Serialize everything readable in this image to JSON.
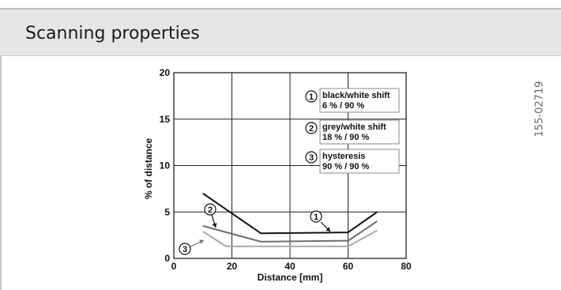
{
  "header": {
    "title": "Scanning properties"
  },
  "reference_code": "155-02719",
  "chart_data": {
    "type": "line",
    "xlabel": "Distance [mm]",
    "ylabel": "% of distance",
    "xlim": [
      0,
      80
    ],
    "ylim": [
      0,
      20
    ],
    "x_ticks": [
      0,
      20,
      40,
      60,
      80
    ],
    "y_ticks": [
      0,
      5,
      10,
      15,
      20
    ],
    "grid": true,
    "legend": [
      {
        "number": "1",
        "lines": [
          "black/white shift",
          "6 % / 90 %"
        ]
      },
      {
        "number": "2",
        "lines": [
          "grey/white shift",
          "18 % / 90 %"
        ]
      },
      {
        "number": "3",
        "lines": [
          "hysteresis",
          "90 % / 90 %"
        ]
      }
    ],
    "legend_position": "top-right",
    "series": [
      {
        "number": "1",
        "color": "#111111",
        "x": [
          10,
          30,
          60,
          70
        ],
        "y": [
          7,
          2.7,
          2.8,
          5
        ]
      },
      {
        "number": "2",
        "color": "#6e6e6e",
        "x": [
          10,
          30,
          60,
          70
        ],
        "y": [
          3.5,
          1.8,
          1.9,
          4
        ]
      },
      {
        "number": "3",
        "color": "#a9a9a9",
        "x": [
          10,
          18,
          60,
          70
        ],
        "y": [
          2.9,
          1.3,
          1.3,
          3
        ]
      }
    ]
  }
}
